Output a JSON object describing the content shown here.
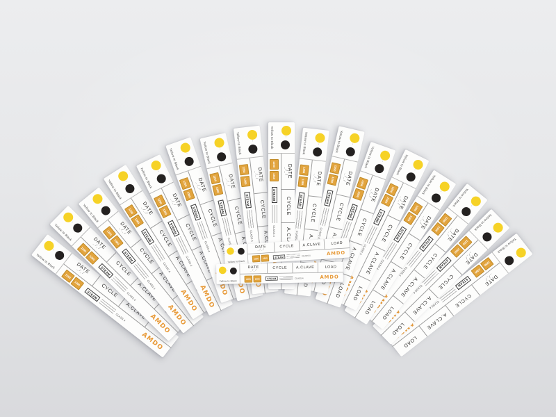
{
  "scene": {
    "subject": "fan of sterilization indicator test strips",
    "backdrop_top_color": "#ecedef",
    "backdrop_bottom_color": "#d9dadd"
  },
  "strip": {
    "caption": "Yellow to Black",
    "dot_separator": "-",
    "fields": [
      "DATE",
      "CYCLE",
      "A.CLAVE",
      "LOAD"
    ],
    "date_line": "_/_/",
    "blocks": [
      "1250",
      "1360"
    ],
    "steam_label": "STEAM",
    "class_label": "CLASS 4",
    "brand": "AMDO",
    "colors": {
      "yellow_dot": "#f6d226",
      "black_dot": "#242120",
      "indicator_block": "#e2a43e",
      "brand_orange": "#e89b3a",
      "paper": "#fdfdfc"
    }
  },
  "fan": {
    "strip_count": 17,
    "loose_strip_count": 2
  }
}
